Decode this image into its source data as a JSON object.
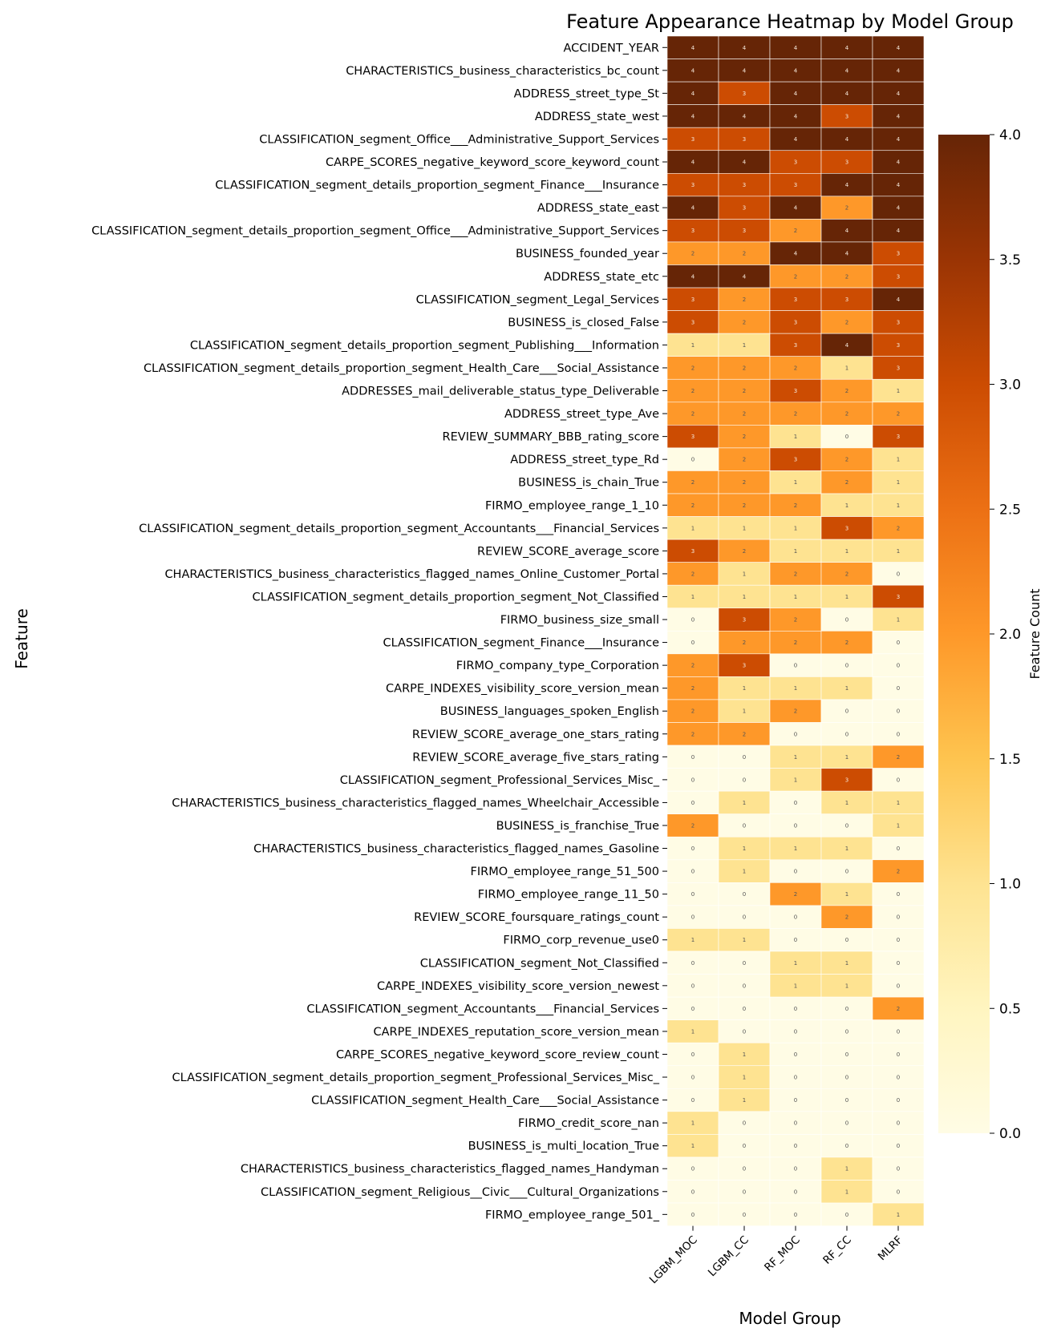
{
  "chart_data": {
    "type": "heatmap",
    "title": "Feature Appearance Heatmap by Model Group",
    "xlabel": "Model Group",
    "ylabel": "Feature",
    "x": [
      "LGBM_MOC",
      "LGBM_CC",
      "RF_MOC",
      "RF_CC",
      "MLRF"
    ],
    "y": [
      "ACCIDENT_YEAR",
      "CHARACTERISTICS_business_characteristics_bc_count",
      "ADDRESS_street_type_St",
      "ADDRESS_state_west",
      "CLASSIFICATION_segment_Office___Administrative_Support_Services",
      "CARPE_SCORES_negative_keyword_score_keyword_count",
      "CLASSIFICATION_segment_details_proportion_segment_Finance___Insurance",
      "ADDRESS_state_east",
      "CLASSIFICATION_segment_details_proportion_segment_Office___Administrative_Support_Services",
      "BUSINESS_founded_year",
      "ADDRESS_state_etc",
      "CLASSIFICATION_segment_Legal_Services",
      "BUSINESS_is_closed_False",
      "CLASSIFICATION_segment_details_proportion_segment_Publishing___Information",
      "CLASSIFICATION_segment_details_proportion_segment_Health_Care___Social_Assistance",
      "ADDRESSES_mail_deliverable_status_type_Deliverable",
      "ADDRESS_street_type_Ave",
      "REVIEW_SUMMARY_BBB_rating_score",
      "ADDRESS_street_type_Rd",
      "BUSINESS_is_chain_True",
      "FIRMO_employee_range_1_10",
      "CLASSIFICATION_segment_details_proportion_segment_Accountants___Financial_Services",
      "REVIEW_SCORE_average_score",
      "CHARACTERISTICS_business_characteristics_flagged_names_Online_Customer_Portal",
      "CLASSIFICATION_segment_details_proportion_segment_Not_Classified",
      "FIRMO_business_size_small",
      "CLASSIFICATION_segment_Finance___Insurance",
      "FIRMO_company_type_Corporation",
      "CARPE_INDEXES_visibility_score_version_mean",
      "BUSINESS_languages_spoken_English",
      "REVIEW_SCORE_average_one_stars_rating",
      "REVIEW_SCORE_average_five_stars_rating",
      "CLASSIFICATION_segment_Professional_Services_Misc_",
      "CHARACTERISTICS_business_characteristics_flagged_names_Wheelchair_Accessible",
      "BUSINESS_is_franchise_True",
      "CHARACTERISTICS_business_characteristics_flagged_names_Gasoline",
      "FIRMO_employee_range_51_500",
      "FIRMO_employee_range_11_50",
      "REVIEW_SCORE_foursquare_ratings_count",
      "FIRMO_corp_revenue_use0",
      "CLASSIFICATION_segment_Not_Classified",
      "CARPE_INDEXES_visibility_score_version_newest",
      "CLASSIFICATION_segment_Accountants___Financial_Services",
      "CARPE_INDEXES_reputation_score_version_mean",
      "CARPE_SCORES_negative_keyword_score_review_count",
      "CLASSIFICATION_segment_details_proportion_segment_Professional_Services_Misc_",
      "CLASSIFICATION_segment_Health_Care___Social_Assistance",
      "FIRMO_credit_score_nan",
      "BUSINESS_is_multi_location_True",
      "CHARACTERISTICS_business_characteristics_flagged_names_Handyman",
      "CLASSIFICATION_segment_Religious__Civic___Cultural_Organizations",
      "FIRMO_employee_range_501_"
    ],
    "values": [
      [
        4,
        4,
        4,
        4,
        4
      ],
      [
        4,
        4,
        4,
        4,
        4
      ],
      [
        4,
        3,
        4,
        4,
        4
      ],
      [
        4,
        4,
        4,
        3,
        4
      ],
      [
        3,
        3,
        4,
        4,
        4
      ],
      [
        4,
        4,
        3,
        3,
        4
      ],
      [
        3,
        3,
        3,
        4,
        4
      ],
      [
        4,
        3,
        4,
        2,
        4
      ],
      [
        3,
        3,
        2,
        4,
        4
      ],
      [
        2,
        2,
        4,
        4,
        3
      ],
      [
        4,
        4,
        2,
        2,
        3
      ],
      [
        3,
        2,
        3,
        3,
        4
      ],
      [
        3,
        2,
        3,
        2,
        3
      ],
      [
        1,
        1,
        3,
        4,
        3
      ],
      [
        2,
        2,
        2,
        1,
        3
      ],
      [
        2,
        2,
        3,
        2,
        1
      ],
      [
        2,
        2,
        2,
        2,
        2
      ],
      [
        3,
        2,
        1,
        0,
        3
      ],
      [
        0,
        2,
        3,
        2,
        1
      ],
      [
        2,
        2,
        1,
        2,
        1
      ],
      [
        2,
        2,
        2,
        1,
        1
      ],
      [
        1,
        1,
        1,
        3,
        2
      ],
      [
        3,
        2,
        1,
        1,
        1
      ],
      [
        2,
        1,
        2,
        2,
        0
      ],
      [
        1,
        1,
        1,
        1,
        3
      ],
      [
        0,
        3,
        2,
        0,
        1
      ],
      [
        0,
        2,
        2,
        2,
        0
      ],
      [
        2,
        3,
        0,
        0,
        0
      ],
      [
        2,
        1,
        1,
        1,
        0
      ],
      [
        2,
        1,
        2,
        0,
        0
      ],
      [
        2,
        2,
        0,
        0,
        0
      ],
      [
        0,
        0,
        1,
        1,
        2
      ],
      [
        0,
        0,
        1,
        3,
        0
      ],
      [
        0,
        1,
        0,
        1,
        1
      ],
      [
        2,
        0,
        0,
        0,
        1
      ],
      [
        0,
        1,
        1,
        1,
        0
      ],
      [
        0,
        1,
        0,
        0,
        2
      ],
      [
        0,
        0,
        2,
        1,
        0
      ],
      [
        0,
        0,
        0,
        2,
        0
      ],
      [
        1,
        1,
        0,
        0,
        0
      ],
      [
        0,
        0,
        1,
        1,
        0
      ],
      [
        0,
        0,
        1,
        1,
        0
      ],
      [
        0,
        0,
        0,
        0,
        2
      ],
      [
        1,
        0,
        0,
        0,
        0
      ],
      [
        0,
        1,
        0,
        0,
        0
      ],
      [
        0,
        1,
        0,
        0,
        0
      ],
      [
        0,
        1,
        0,
        0,
        0
      ],
      [
        1,
        0,
        0,
        0,
        0
      ],
      [
        1,
        0,
        0,
        0,
        0
      ],
      [
        0,
        0,
        0,
        1,
        0
      ],
      [
        0,
        0,
        0,
        1,
        0
      ],
      [
        0,
        0,
        0,
        0,
        1
      ]
    ],
    "annotate": true,
    "colormap": "YlOrBr",
    "vmin": 0,
    "vmax": 4,
    "colorbar": {
      "label": "Feature Count",
      "ticks": [
        0.0,
        0.5,
        1.0,
        1.5,
        2.0,
        2.5,
        3.0,
        3.5,
        4.0
      ],
      "tick_labels": [
        "0.0",
        "0.5",
        "1.0",
        "1.5",
        "2.0",
        "2.5",
        "3.0",
        "3.5",
        "4.0"
      ],
      "placement": "right"
    },
    "colors": {
      "level_0": "#fffce5",
      "level_1": "#fee391",
      "level_2": "#fe9829",
      "level_3": "#cc4c02",
      "level_4": "#662506"
    },
    "grid": false
  }
}
